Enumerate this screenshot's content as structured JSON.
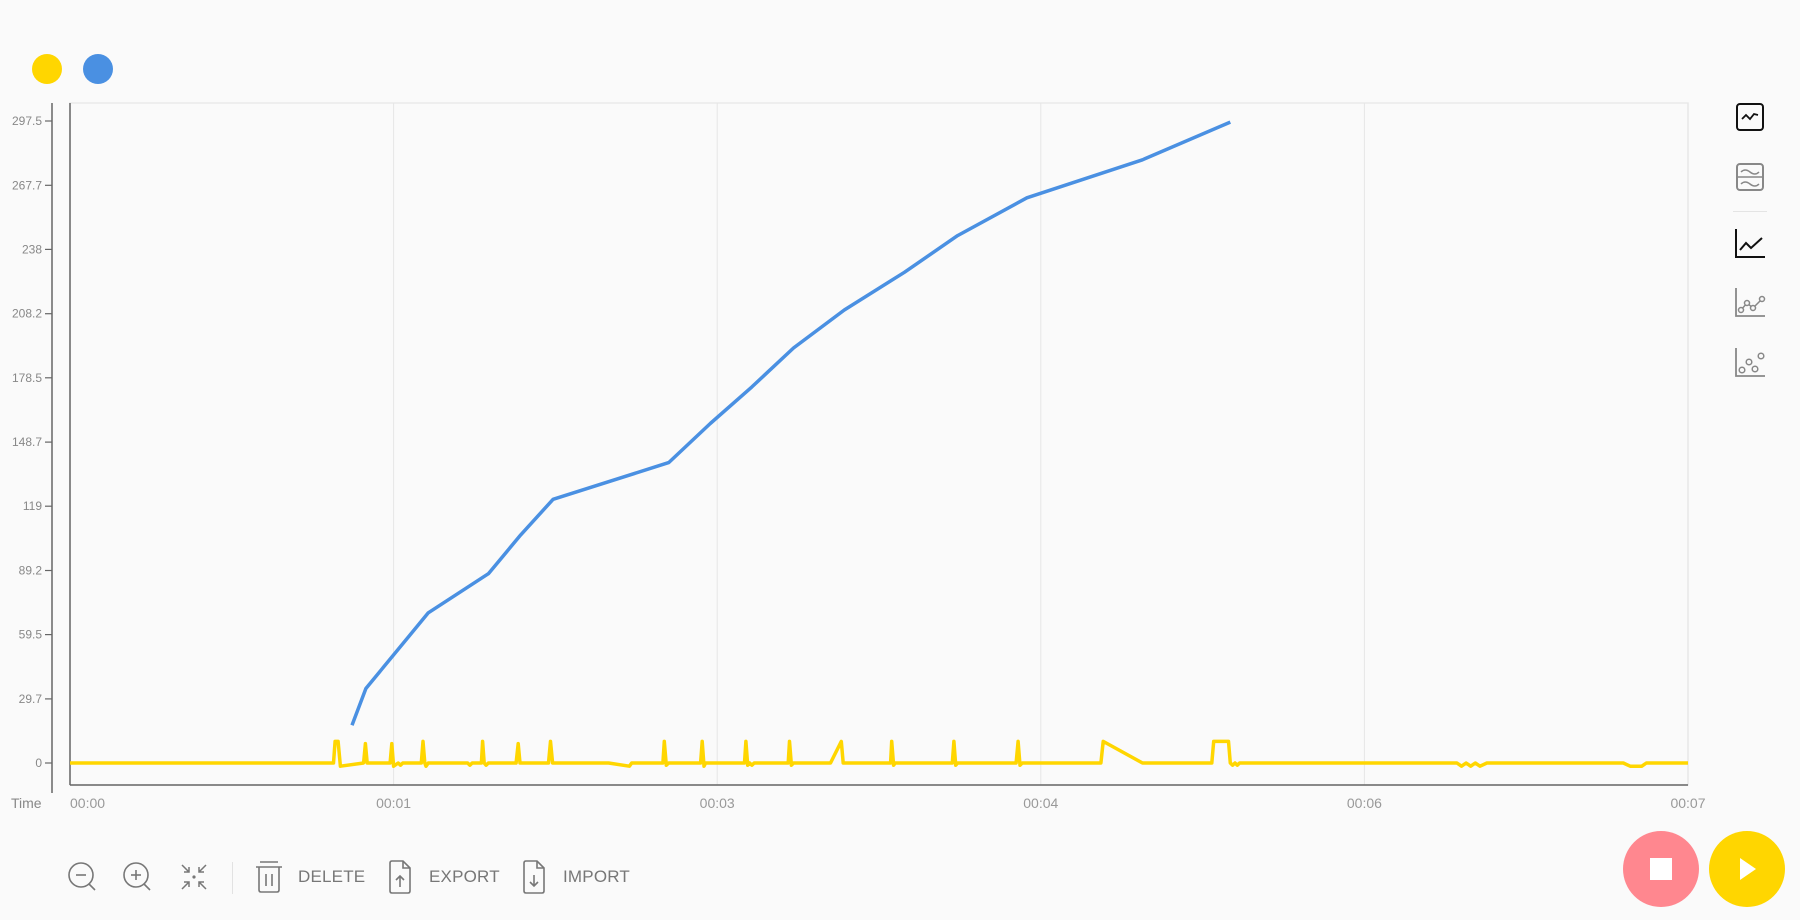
{
  "legend": [
    {
      "name": "series-yellow",
      "color": "#FFD600"
    },
    {
      "name": "series-blue",
      "color": "#4A90E2"
    }
  ],
  "chart_data": {
    "type": "line",
    "xlabel": "Time",
    "ylabel": "",
    "xlim_seconds": [
      0,
      7
    ],
    "ylim": [
      -10,
      306
    ],
    "grid": {
      "vertical": true,
      "horizontal": false
    },
    "y_ticks": [
      0,
      29.7,
      59.5,
      89.2,
      119,
      148.7,
      178.5,
      208.2,
      238,
      267.7,
      297.5
    ],
    "y_tick_labels": [
      "0",
      "29.7",
      "59.5",
      "89.2",
      "119",
      "148.7",
      "178.5",
      "208.2",
      "238",
      "267.7",
      "297.5"
    ],
    "x_ticks_seconds": [
      0,
      1.4,
      2.8,
      4.2,
      5.6,
      7.0
    ],
    "x_tick_labels": [
      "00:00",
      "00:01",
      "00:03",
      "00:04",
      "00:06",
      "00:07"
    ],
    "series": [
      {
        "color": "#FFD600",
        "points": [
          [
            0,
            0
          ],
          [
            1.14,
            0
          ],
          [
            1.147,
            10
          ],
          [
            1.16,
            10
          ],
          [
            1.17,
            -1.5
          ],
          [
            1.27,
            0
          ],
          [
            1.278,
            9
          ],
          [
            1.286,
            0
          ],
          [
            1.385,
            0
          ],
          [
            1.392,
            9
          ],
          [
            1.4,
            -1.5
          ],
          [
            1.42,
            0
          ],
          [
            1.43,
            -1
          ],
          [
            1.44,
            0
          ],
          [
            1.52,
            0
          ],
          [
            1.527,
            10
          ],
          [
            1.535,
            0
          ],
          [
            1.54,
            -1.5
          ],
          [
            1.55,
            0
          ],
          [
            1.72,
            0
          ],
          [
            1.73,
            -1
          ],
          [
            1.74,
            0
          ],
          [
            1.78,
            0
          ],
          [
            1.785,
            10
          ],
          [
            1.792,
            0
          ],
          [
            1.8,
            -1
          ],
          [
            1.81,
            0
          ],
          [
            1.93,
            0
          ],
          [
            1.939,
            9
          ],
          [
            1.947,
            0
          ],
          [
            2.07,
            0
          ],
          [
            2.079,
            10
          ],
          [
            2.088,
            0
          ],
          [
            2.33,
            0
          ],
          [
            2.42,
            -1.5
          ],
          [
            2.43,
            0
          ],
          [
            2.565,
            0
          ],
          [
            2.571,
            10
          ],
          [
            2.58,
            -1
          ],
          [
            2.59,
            0
          ],
          [
            2.728,
            0
          ],
          [
            2.735,
            10
          ],
          [
            2.743,
            -1.5
          ],
          [
            2.75,
            0
          ],
          [
            2.918,
            0
          ],
          [
            2.924,
            10
          ],
          [
            2.932,
            -1
          ],
          [
            2.94,
            0
          ],
          [
            2.95,
            -1
          ],
          [
            2.96,
            0
          ],
          [
            3.107,
            0
          ],
          [
            3.113,
            10
          ],
          [
            3.121,
            -1
          ],
          [
            3.13,
            0
          ],
          [
            3.29,
            0
          ],
          [
            3.337,
            10
          ],
          [
            3.345,
            0
          ],
          [
            3.55,
            0
          ],
          [
            3.555,
            10
          ],
          [
            3.563,
            -1
          ],
          [
            3.57,
            0
          ],
          [
            3.817,
            0
          ],
          [
            3.824,
            10
          ],
          [
            3.832,
            -1
          ],
          [
            3.84,
            0
          ],
          [
            4.093,
            0
          ],
          [
            4.102,
            10
          ],
          [
            4.11,
            -1
          ],
          [
            4.12,
            0
          ],
          [
            4.46,
            0
          ],
          [
            4.47,
            10
          ],
          [
            4.64,
            0
          ],
          [
            4.94,
            0
          ],
          [
            4.948,
            10
          ],
          [
            5.012,
            10
          ],
          [
            5.02,
            0
          ],
          [
            5.03,
            -1
          ],
          [
            5.04,
            0
          ],
          [
            5.05,
            -1
          ],
          [
            5.06,
            0
          ],
          [
            6.0,
            0
          ],
          [
            6.02,
            -1.5
          ],
          [
            6.04,
            0
          ],
          [
            6.06,
            -1.5
          ],
          [
            6.08,
            0
          ],
          [
            6.1,
            -1.5
          ],
          [
            6.13,
            0
          ],
          [
            6.72,
            0
          ],
          [
            6.75,
            -1.5
          ],
          [
            6.8,
            -1.5
          ],
          [
            6.82,
            0
          ],
          [
            7.0,
            0
          ]
        ]
      },
      {
        "color": "#4A90E2",
        "points": [
          [
            1.22,
            17.5
          ],
          [
            1.28,
            34.5
          ],
          [
            1.55,
            69.6
          ],
          [
            1.81,
            87.7
          ],
          [
            1.95,
            105.7
          ],
          [
            2.09,
            122.2
          ],
          [
            2.59,
            139.2
          ],
          [
            2.77,
            157.3
          ],
          [
            2.95,
            174.3
          ],
          [
            3.13,
            192.3
          ],
          [
            3.35,
            209.9
          ],
          [
            3.61,
            227.4
          ],
          [
            3.84,
            244.4
          ],
          [
            4.14,
            261.9
          ],
          [
            4.64,
            279.5
          ],
          [
            5.02,
            297.0
          ]
        ]
      }
    ]
  },
  "side_icons": [
    "single-chart-icon",
    "stacked-chart-icon",
    "line-chart-icon",
    "line-points-chart-icon",
    "scatter-chart-icon"
  ],
  "toolbar": {
    "delete_label": "DELETE",
    "export_label": "EXPORT",
    "import_label": "IMPORT"
  },
  "colors": {
    "stop": "#FF878F",
    "play": "#FFD600",
    "axis": "#666666",
    "grid": "#e6e6e6"
  }
}
